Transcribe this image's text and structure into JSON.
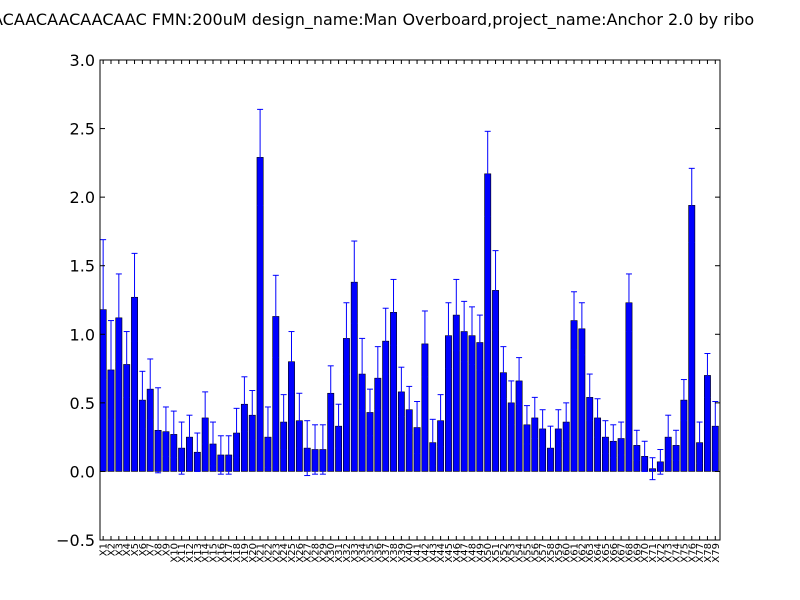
{
  "chart_data": {
    "type": "bar",
    "title": "ACAACAACAACAAC  FMN:200uM  design_name:Man Overboard,project_name:Anchor 2.0 by ribo",
    "xlabel": "",
    "ylabel": "",
    "ylim": [
      -0.5,
      3.0
    ],
    "yticks": [
      -0.5,
      0.0,
      0.5,
      1.0,
      1.5,
      2.0,
      2.5,
      3.0
    ],
    "ytick_labels": [
      "−0.5",
      "0.0",
      "0.5",
      "1.0",
      "1.5",
      "2.0",
      "2.5",
      "3.0"
    ],
    "grid": false,
    "categories": [
      "X1",
      "X2",
      "X3",
      "X4",
      "X5",
      "X6",
      "X7",
      "X8",
      "X9",
      "X10",
      "X11",
      "X12",
      "X13",
      "X14",
      "X15",
      "X16",
      "X17",
      "X18",
      "X19",
      "X20",
      "X21",
      "X22",
      "X23",
      "X24",
      "X25",
      "X26",
      "X27",
      "X28",
      "X29",
      "X30",
      "X31",
      "X32",
      "X33",
      "X34",
      "X35",
      "X36",
      "X37",
      "X38",
      "X39",
      "X40",
      "X41",
      "X42",
      "X43",
      "X44",
      "X45",
      "X46",
      "X47",
      "X48",
      "X49",
      "X50",
      "X51",
      "X52",
      "X53",
      "X54",
      "X55",
      "X56",
      "X57",
      "X58",
      "X59",
      "X60",
      "X61",
      "X62",
      "X63",
      "X64",
      "X65",
      "X66",
      "X67",
      "X68",
      "X69",
      "X70",
      "X71",
      "X72",
      "X73",
      "X74",
      "X75",
      "X76",
      "X77",
      "X78",
      "X79"
    ],
    "values": [
      1.18,
      0.74,
      1.12,
      0.78,
      1.27,
      0.52,
      0.6,
      0.3,
      0.29,
      0.27,
      0.17,
      0.25,
      0.14,
      0.39,
      0.2,
      0.12,
      0.12,
      0.28,
      0.49,
      0.41,
      2.29,
      0.25,
      1.13,
      0.36,
      0.8,
      0.37,
      0.17,
      0.16,
      0.16,
      0.57,
      0.33,
      0.97,
      1.38,
      0.71,
      0.43,
      0.68,
      0.95,
      1.16,
      0.58,
      0.45,
      0.32,
      0.93,
      0.21,
      0.37,
      0.99,
      1.14,
      1.02,
      0.99,
      0.94,
      2.17,
      1.32,
      0.72,
      0.5,
      0.66,
      0.34,
      0.39,
      0.31,
      0.17,
      0.31,
      0.36,
      1.1,
      1.04,
      0.54,
      0.39,
      0.25,
      0.22,
      0.24,
      1.23,
      0.19,
      0.11,
      0.02,
      0.07,
      0.25,
      0.19,
      0.52,
      1.94,
      0.21,
      0.7,
      0.33
    ],
    "errors": [
      0.51,
      0.36,
      0.32,
      0.24,
      0.32,
      0.21,
      0.22,
      0.31,
      0.18,
      0.17,
      0.19,
      0.16,
      0.14,
      0.19,
      0.16,
      0.14,
      0.14,
      0.18,
      0.2,
      0.18,
      0.35,
      0.22,
      0.3,
      0.2,
      0.22,
      0.2,
      0.2,
      0.18,
      0.18,
      0.2,
      0.16,
      0.26,
      0.3,
      0.26,
      0.17,
      0.23,
      0.24,
      0.24,
      0.18,
      0.17,
      0.19,
      0.24,
      0.17,
      0.19,
      0.24,
      0.26,
      0.22,
      0.21,
      0.2,
      0.31,
      0.29,
      0.19,
      0.16,
      0.17,
      0.14,
      0.15,
      0.14,
      0.16,
      0.14,
      0.14,
      0.21,
      0.19,
      0.17,
      0.14,
      0.12,
      0.12,
      0.12,
      0.21,
      0.11,
      0.11,
      0.08,
      0.09,
      0.16,
      0.11,
      0.15,
      0.27,
      0.15,
      0.16,
      0.18
    ],
    "bar_color": "#0000ff",
    "error_color": "#0000ff"
  }
}
